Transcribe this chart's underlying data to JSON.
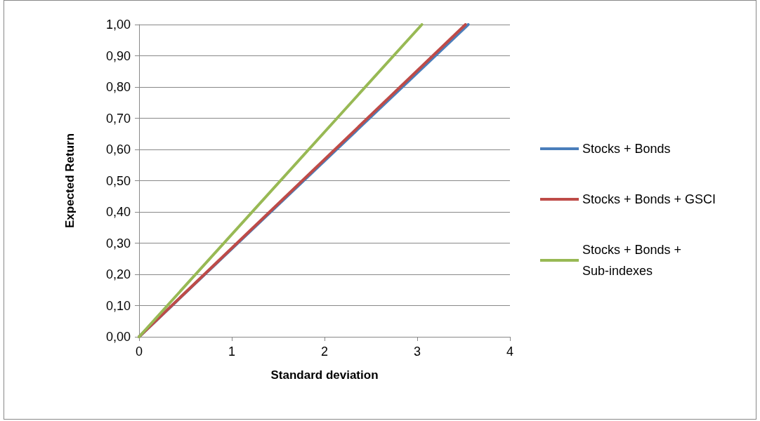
{
  "chart_data": {
    "type": "line",
    "xlabel": "Standard deviation",
    "ylabel": "Expected Return",
    "xlim": [
      0,
      4
    ],
    "xticks": [
      0,
      1,
      2,
      3,
      4
    ],
    "ylim": [
      0,
      1
    ],
    "yticks": [
      {
        "value": 0,
        "label": "0,00"
      },
      {
        "value": 0.1,
        "label": "0,10"
      },
      {
        "value": 0.2,
        "label": "0,20"
      },
      {
        "value": 0.3,
        "label": "0,30"
      },
      {
        "value": 0.4,
        "label": "0,40"
      },
      {
        "value": 0.5,
        "label": "0,50"
      },
      {
        "value": 0.6,
        "label": "0,60"
      },
      {
        "value": 0.7,
        "label": "0,70"
      },
      {
        "value": 0.8,
        "label": "0,80"
      },
      {
        "value": 0.9,
        "label": "0,90"
      },
      {
        "value": 1,
        "label": "1,00"
      }
    ],
    "series": [
      {
        "name": "Stocks + Bonds",
        "color": "#4a7ebb",
        "x": [
          0,
          3.55
        ],
        "values": [
          0,
          1
        ]
      },
      {
        "name": "Stocks + Bonds + GSCI",
        "color": "#be4b48",
        "x": [
          0,
          3.52
        ],
        "values": [
          0,
          1
        ]
      },
      {
        "name": "Stocks + Bonds + Sub-indexes",
        "color": "#98b954",
        "x": [
          0,
          3.05
        ],
        "values": [
          0,
          1
        ]
      }
    ],
    "grid": "y",
    "legend": "right",
    "marker": "none",
    "line_style": "solid"
  }
}
